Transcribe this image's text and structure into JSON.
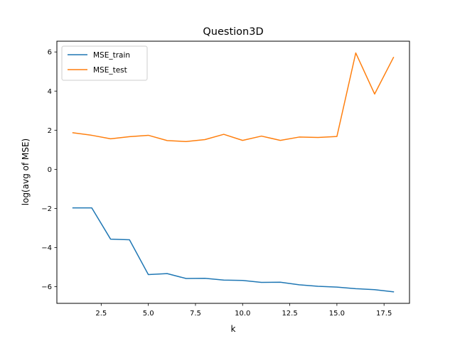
{
  "chart_data": {
    "type": "line",
    "title": "Question3D",
    "xlabel": "k",
    "ylabel": "log(avg of MSE)",
    "xlim": [
      0.15,
      18.85
    ],
    "ylim": [
      -6.85,
      6.55
    ],
    "xticks": [
      2.5,
      5.0,
      7.5,
      10.0,
      12.5,
      15.0,
      17.5
    ],
    "xtick_labels": [
      "2.5",
      "5.0",
      "7.5",
      "10.0",
      "12.5",
      "15.0",
      "17.5"
    ],
    "yticks": [
      -6,
      -4,
      -2,
      0,
      2,
      4,
      6
    ],
    "ytick_labels": [
      "−6",
      "−4",
      "−2",
      "0",
      "2",
      "4",
      "6"
    ],
    "grid": false,
    "legend": "top-left",
    "x": [
      1,
      2,
      3,
      4,
      5,
      6,
      7,
      8,
      9,
      10,
      11,
      12,
      13,
      14,
      15,
      16,
      17,
      18
    ],
    "series": [
      {
        "name": "MSE_train",
        "color": "#1f77b4",
        "values": [
          -1.97,
          -1.97,
          -3.57,
          -3.6,
          -5.38,
          -5.33,
          -5.58,
          -5.57,
          -5.66,
          -5.68,
          -5.78,
          -5.77,
          -5.9,
          -5.98,
          -6.02,
          -6.1,
          -6.15,
          -6.26
        ]
      },
      {
        "name": "MSE_test",
        "color": "#ff7f0e",
        "values": [
          1.87,
          1.74,
          1.56,
          1.67,
          1.74,
          1.47,
          1.42,
          1.52,
          1.79,
          1.48,
          1.7,
          1.48,
          1.65,
          1.63,
          1.68,
          5.95,
          3.85,
          5.72
        ]
      }
    ]
  }
}
